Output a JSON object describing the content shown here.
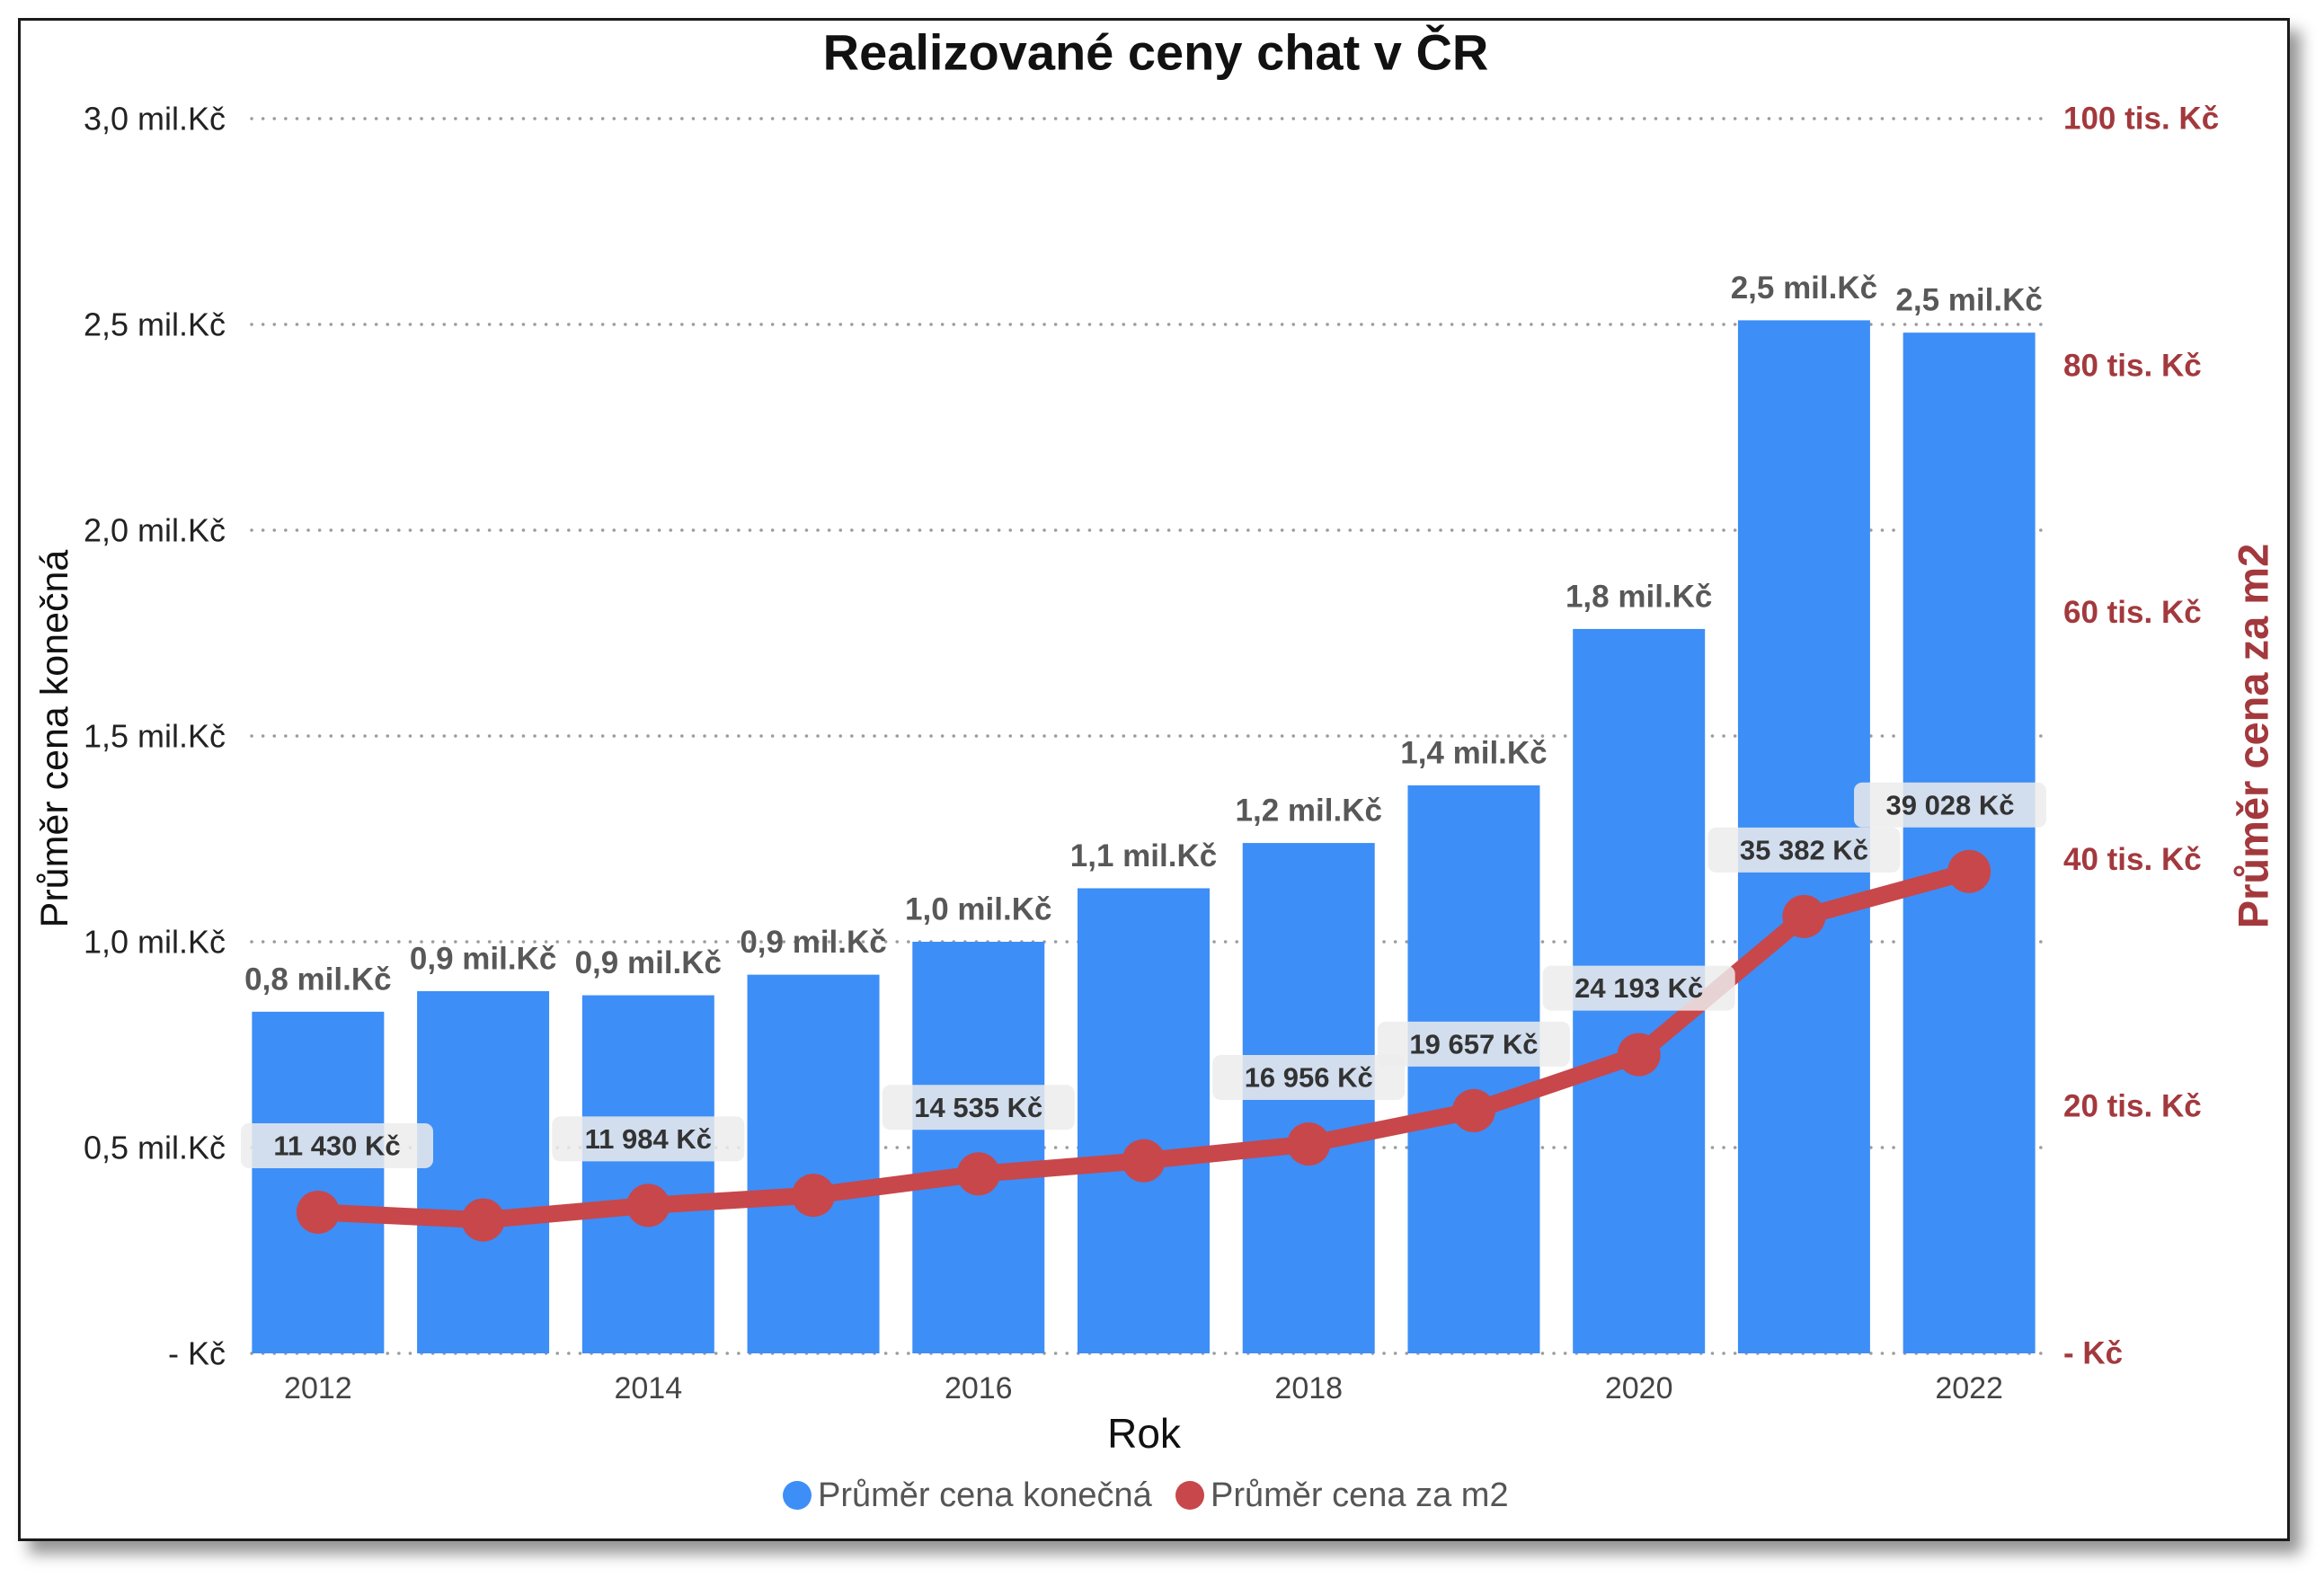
{
  "chart_data": {
    "type": "bar",
    "title": "Realizované ceny chat v ČR",
    "xlabel": "Rok",
    "x": [
      2012,
      2013,
      2014,
      2015,
      2016,
      2017,
      2018,
      2019,
      2020,
      2021,
      2022
    ],
    "x_ticks": [
      {
        "value": 2012,
        "label": "2012"
      },
      {
        "value": 2014,
        "label": "2014"
      },
      {
        "value": 2016,
        "label": "2016"
      },
      {
        "value": 2018,
        "label": "2018"
      },
      {
        "value": 2020,
        "label": "2020"
      },
      {
        "value": 2022,
        "label": "2022"
      }
    ],
    "y_left": {
      "label": "Průměr cena konečná",
      "range": [
        0,
        3.0
      ],
      "ticks": [
        {
          "value": 0,
          "label": "- Kč"
        },
        {
          "value": 0.5,
          "label": "0,5 mil.Kč"
        },
        {
          "value": 1.0,
          "label": "1,0 mil.Kč"
        },
        {
          "value": 1.5,
          "label": "1,5 mil.Kč"
        },
        {
          "value": 2.0,
          "label": "2,0 mil.Kč"
        },
        {
          "value": 2.5,
          "label": "2,5 mil.Kč"
        },
        {
          "value": 3.0,
          "label": "3,0 mil.Kč"
        }
      ]
    },
    "y_right": {
      "label": "Průměr cena za m2",
      "range": [
        0,
        100
      ],
      "color": "#a3393d",
      "ticks": [
        {
          "value": 0,
          "label": "- Kč"
        },
        {
          "value": 20,
          "label": "20 tis. Kč"
        },
        {
          "value": 40,
          "label": "40 tis. Kč"
        },
        {
          "value": 60,
          "label": "60 tis. Kč"
        },
        {
          "value": 80,
          "label": "80 tis. Kč"
        },
        {
          "value": 100,
          "label": "100 tis. Kč"
        }
      ]
    },
    "series": [
      {
        "name": "Průměr cena konečná",
        "type": "bar",
        "axis": "left",
        "color": "#3d8ef7",
        "values": [
          0.83,
          0.88,
          0.87,
          0.92,
          1.0,
          1.13,
          1.24,
          1.38,
          1.76,
          2.51,
          2.48
        ],
        "labels": [
          "0,8 mil.Kč",
          "0,9 mil.Kč",
          "0,9 mil.Kč",
          "0,9 mil.Kč",
          "1,0 mil.Kč",
          "1,1 mil.Kč",
          "1,2 mil.Kč",
          "1,4 mil.Kč",
          "1,8 mil.Kč",
          "2,5 mil.Kč",
          "2,5 mil.Kč"
        ]
      },
      {
        "name": "Průměr cena za m2",
        "type": "line",
        "axis": "right",
        "color": "#c8474a",
        "values": [
          11.43,
          10.8,
          11.984,
          12.8,
          14.535,
          15.6,
          16.956,
          19.657,
          24.193,
          35.382,
          39.028
        ],
        "labels": [
          "11 430 Kč",
          null,
          "11 984 Kč",
          null,
          "14 535 Kč",
          null,
          "16 956 Kč",
          "19 657 Kč",
          "24 193 Kč",
          "35 382 Kč",
          "39 028 Kč"
        ]
      }
    ],
    "grid": true,
    "legend": "bottom"
  }
}
